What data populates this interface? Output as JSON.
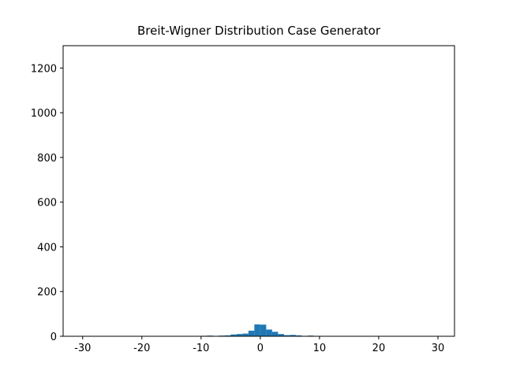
{
  "chart_data": {
    "type": "histogram",
    "title": "Breit-Wigner Distribution Case Generator",
    "bins": [
      -10,
      -9,
      -8,
      -7,
      -6,
      -5,
      -4,
      -3,
      -2,
      -1,
      0,
      1,
      2,
      3,
      4,
      5,
      6,
      7,
      8,
      9,
      10
    ],
    "values": [
      2,
      3,
      1,
      3,
      4,
      8,
      10,
      12,
      25,
      53,
      52,
      30,
      20,
      10,
      5,
      6,
      4,
      1,
      3,
      1
    ],
    "color": "#1f77b4",
    "xlim": [
      -33.3,
      32.8
    ],
    "xticks": [
      -30,
      -20,
      -10,
      0,
      10,
      20,
      30
    ],
    "ylim": [
      0,
      1300
    ],
    "yticks": [
      0,
      200,
      400,
      600,
      800,
      1000,
      1200
    ]
  }
}
